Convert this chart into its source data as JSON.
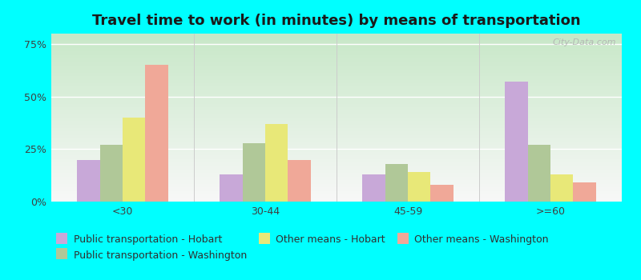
{
  "title": "Travel time to work (in minutes) by means of transportation",
  "categories": [
    "<30",
    "30-44",
    "45-59",
    ">=60"
  ],
  "series": {
    "Public transportation - Hobart": [
      20,
      13,
      13,
      57
    ],
    "Public transportation - Washington": [
      27,
      28,
      18,
      27
    ],
    "Other means - Hobart": [
      40,
      37,
      14,
      13
    ],
    "Other means - Washington": [
      65,
      20,
      8,
      9
    ]
  },
  "colors_map": {
    "Public transportation - Hobart": "#c8a8d8",
    "Public transportation - Washington": "#b0c898",
    "Other means - Hobart": "#e8e878",
    "Other means - Washington": "#f0a898"
  },
  "ylim": [
    0,
    80
  ],
  "yticks": [
    0,
    25,
    50,
    75
  ],
  "ytick_labels": [
    "0%",
    "25%",
    "50%",
    "75%"
  ],
  "background_color": "#00ffff",
  "plot_bg_top": "#c8e8c8",
  "plot_bg_bottom": "#f8f8f8",
  "title_fontsize": 13,
  "legend_fontsize": 9,
  "tick_fontsize": 9,
  "bar_width": 0.16,
  "watermark": "City-Data.com"
}
